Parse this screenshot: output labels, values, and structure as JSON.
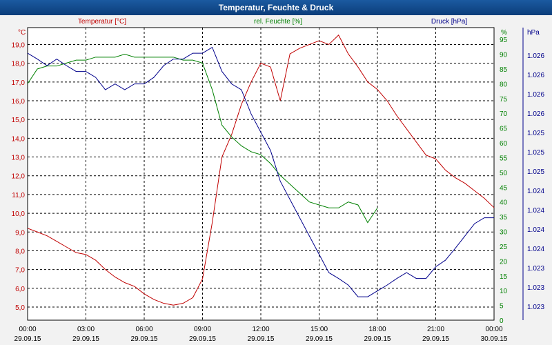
{
  "title": "Temperatur, Feuchte & Druck",
  "colors": {
    "temp": "#c00000",
    "hum": "#008000",
    "press": "#00008b"
  },
  "chart_data": {
    "type": "line",
    "title": "Temperatur, Feuchte & Druck",
    "x_hours": [
      0,
      0.5,
      1,
      1.5,
      2,
      2.5,
      3,
      3.5,
      4,
      4.5,
      5,
      5.5,
      6,
      6.5,
      7,
      7.5,
      8,
      8.5,
      9,
      9.5,
      10,
      10.5,
      11,
      11.5,
      12,
      12.5,
      13,
      13.5,
      14,
      14.5,
      15,
      15.5,
      16,
      16.5,
      17,
      17.5,
      18,
      18.5,
      19,
      19.5,
      20,
      20.5,
      21,
      21.5,
      22,
      22.5,
      23,
      23.5,
      24
    ],
    "x_tick_labels": [
      [
        "00:00",
        "29.09.15"
      ],
      [
        "03:00",
        "29.09.15"
      ],
      [
        "06:00",
        "29.09.15"
      ],
      [
        "09:00",
        "29.09.15"
      ],
      [
        "12:00",
        "29.09.15"
      ],
      [
        "15:00",
        "29.09.15"
      ],
      [
        "18:00",
        "29.09.15"
      ],
      [
        "21:00",
        "29.09.15"
      ],
      [
        "00:00",
        "30.09.15"
      ]
    ],
    "x_ticks": [
      0,
      3,
      6,
      9,
      12,
      15,
      18,
      21,
      24
    ],
    "series": [
      {
        "name": "Temperatur [°C]",
        "unit": "°C",
        "axis": "left",
        "ylim": [
          4.3,
          19.9
        ],
        "ticks": [
          "5,0",
          "6,0",
          "7,0",
          "8,0",
          "9,0",
          "10,0",
          "11,0",
          "12,0",
          "13,0",
          "14,0",
          "15,0",
          "16,0",
          "17,0",
          "18,0",
          "19,0"
        ],
        "tick_values": [
          5,
          6,
          7,
          8,
          9,
          10,
          11,
          12,
          13,
          14,
          15,
          16,
          17,
          18,
          19
        ],
        "values": [
          9.2,
          9.0,
          8.8,
          8.5,
          8.2,
          7.9,
          7.8,
          7.5,
          7.0,
          6.6,
          6.3,
          6.1,
          5.7,
          5.4,
          5.2,
          5.1,
          5.2,
          5.5,
          6.5,
          9.5,
          13.0,
          14.2,
          15.8,
          17.0,
          18.0,
          17.8,
          16.0,
          18.5,
          18.8,
          19.0,
          19.2,
          19.0,
          19.5,
          18.5,
          17.8,
          17.0,
          16.6,
          16.0,
          15.2,
          14.5,
          13.8,
          13.1,
          12.9,
          12.3,
          11.9,
          11.6,
          11.2,
          10.8,
          10.3
        ]
      },
      {
        "name": "rel. Feuchte [%]",
        "unit": "%",
        "axis": "right1",
        "ylim": [
          0,
          99
        ],
        "ticks": [
          "0",
          "5",
          "10",
          "15",
          "20",
          "25",
          "30",
          "35",
          "40",
          "45",
          "50",
          "55",
          "60",
          "65",
          "70",
          "75",
          "80",
          "85",
          "90",
          "95"
        ],
        "tick_values": [
          0,
          5,
          10,
          15,
          20,
          25,
          30,
          35,
          40,
          45,
          50,
          55,
          60,
          65,
          70,
          75,
          80,
          85,
          90,
          95
        ],
        "x_hours": [
          0,
          0.5,
          1,
          1.5,
          2,
          2.5,
          3,
          3.5,
          4,
          4.5,
          5,
          5.5,
          6,
          6.5,
          7,
          7.5,
          8,
          8.5,
          9,
          9.5,
          10,
          10.5,
          11,
          11.5,
          12,
          12.5,
          13,
          13.5,
          14,
          14.5,
          15,
          15.5,
          16,
          16.5,
          17,
          17.5,
          18
        ],
        "values": [
          80,
          85,
          86,
          86,
          87,
          88,
          88,
          89,
          89,
          89,
          90,
          89,
          89,
          89,
          89,
          89,
          88,
          88,
          87,
          78,
          66,
          62,
          59,
          57,
          56,
          53,
          49,
          46,
          43,
          40,
          39,
          38,
          38,
          40,
          39,
          33,
          38
        ]
      },
      {
        "name": "Druck [hPa]",
        "unit": "hPa",
        "axis": "right2",
        "ylim": [
          1.0226,
          1.0266
        ],
        "ticks": [
          "1.023",
          "1.023",
          "1.023",
          "1.024",
          "1.024",
          "1.024",
          "1.024",
          "1.025",
          "1.025",
          "1.025",
          "1.026",
          "1.026",
          "1.026",
          "1.026"
        ],
        "values": [
          1.02625,
          1.02617,
          1.02608,
          1.02617,
          1.02608,
          1.026,
          1.026,
          1.02592,
          1.02575,
          1.02583,
          1.02575,
          1.02583,
          1.02583,
          1.02592,
          1.02608,
          1.02617,
          1.02617,
          1.02625,
          1.02625,
          1.02633,
          1.026,
          1.02583,
          1.02575,
          1.02542,
          1.02517,
          1.02492,
          1.0245,
          1.02425,
          1.024,
          1.02375,
          1.0235,
          1.02325,
          1.02317,
          1.02308,
          1.02292,
          1.02292,
          1.023,
          1.02308,
          1.02317,
          1.02325,
          1.02317,
          1.02317,
          1.02333,
          1.02342,
          1.02358,
          1.02375,
          1.02392,
          1.024,
          1.024
        ]
      }
    ]
  }
}
